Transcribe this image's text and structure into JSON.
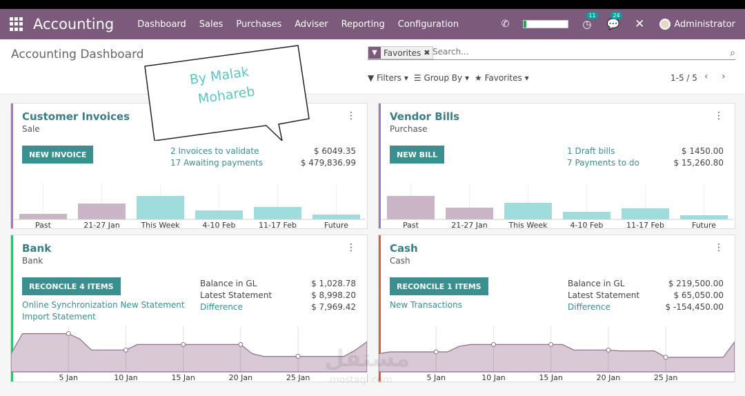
{
  "navbar": {
    "brand": "Accounting",
    "menu": [
      "Dashboard",
      "Sales",
      "Purchases",
      "Adviser",
      "Reporting",
      "Configuration"
    ],
    "badge_activity": "11",
    "badge_messages": "24",
    "user": "Administrator",
    "bar_color": "#7c5a7c"
  },
  "control_panel": {
    "title": "Accounting Dashboard",
    "facet_label": "Favorites",
    "search_placeholder": "Search...",
    "filters": "Filters",
    "group_by": "Group By",
    "favorites": "Favorites",
    "pager": "1-5 / 5"
  },
  "overlay": {
    "line1": "By Malak",
    "line2": "Mohareb"
  },
  "watermark": {
    "arabic": "مستقل",
    "latin": "mostaql.com"
  },
  "cards": {
    "customer": {
      "name": "Customer Invoices",
      "type": "Sale",
      "button": "NEW INVOICE",
      "link1": "2 Invoices to validate",
      "link2": "17 Awaiting payments",
      "amount1": "$ 6049.35",
      "amount2": "$ 479,836.99",
      "stripe": "#9b7bb8"
    },
    "vendor": {
      "name": "Vendor Bills",
      "type": "Purchase",
      "button": "NEW BILL",
      "link1": "1 Draft bills",
      "link2": "7 Payments to do",
      "amount1": "$ 1450.00",
      "amount2": "$ 15,260.80",
      "stripe": "#9b7bb8"
    },
    "bank": {
      "name": "Bank",
      "type": "Bank",
      "button": "RECONCILE 4 ITEMS",
      "link1": "Online Synchronization New Statement",
      "link2": "Import Statement",
      "label1": "Balance in GL",
      "label2": "Latest Statement",
      "label3": "Difference",
      "amount1": "$ 1,028.78",
      "amount2": "$ 8,998.20",
      "amount3": "$ 7,969.42",
      "stripe": "#2fbf71"
    },
    "cash": {
      "name": "Cash",
      "type": "Cash",
      "button": "RECONCILE 1 ITEMS",
      "link1": "New Transactions",
      "label1": "Balance in GL",
      "label2": "Latest Statement",
      "label3": "Difference",
      "amount1": "$ 219,500.00",
      "amount2": "$ 65,050.00",
      "amount3": "$ -154,450.00",
      "stripe": "#e05a4a"
    }
  },
  "chart_data": [
    {
      "type": "bar",
      "categories": [
        "Past",
        "21-27 Jan",
        "This Week",
        "4-10 Feb",
        "11-17 Feb",
        "Future"
      ],
      "values": [
        8,
        23,
        34,
        13,
        18,
        7
      ],
      "colors": [
        "#c9b5c5",
        "#c9b5c5",
        "#9fdcdc",
        "#9fdcdc",
        "#9fdcdc",
        "#9fdcdc"
      ]
    },
    {
      "type": "bar",
      "categories": [
        "Past",
        "21-27 Jan",
        "This Week",
        "4-10 Feb",
        "11-17 Feb",
        "Future"
      ],
      "values": [
        34,
        17,
        24,
        11,
        16,
        6
      ],
      "colors": [
        "#c9b5c5",
        "#c9b5c5",
        "#9fdcdc",
        "#9fdcdc",
        "#9fdcdc",
        "#9fdcdc"
      ]
    },
    {
      "type": "area",
      "x_ticks": [
        "5 Jan",
        "10 Jan",
        "15 Jan",
        "20 Jan",
        "25 Jan"
      ],
      "values": [
        20,
        42,
        42,
        42,
        42,
        42,
        36,
        24,
        24,
        24,
        24,
        30,
        30,
        30,
        30,
        30,
        30,
        30,
        30,
        30,
        30,
        20,
        17,
        17,
        17,
        17,
        17,
        17,
        17,
        17,
        24,
        33
      ],
      "ylim": [
        0,
        50
      ],
      "color": "#d8c9d5"
    },
    {
      "type": "area",
      "x_ticks": [
        "5 Jan",
        "10 Jan",
        "15 Jan",
        "20 Jan",
        "25 Jan"
      ],
      "values": [
        20,
        22,
        22,
        22,
        22,
        22,
        22,
        28,
        30,
        30,
        30,
        30,
        30,
        30,
        30,
        30,
        30,
        24,
        24,
        24,
        24,
        23,
        23,
        23,
        23,
        16,
        16,
        16,
        16,
        16,
        16,
        33
      ],
      "ylim": [
        0,
        50
      ],
      "color": "#d8c9d5"
    }
  ]
}
